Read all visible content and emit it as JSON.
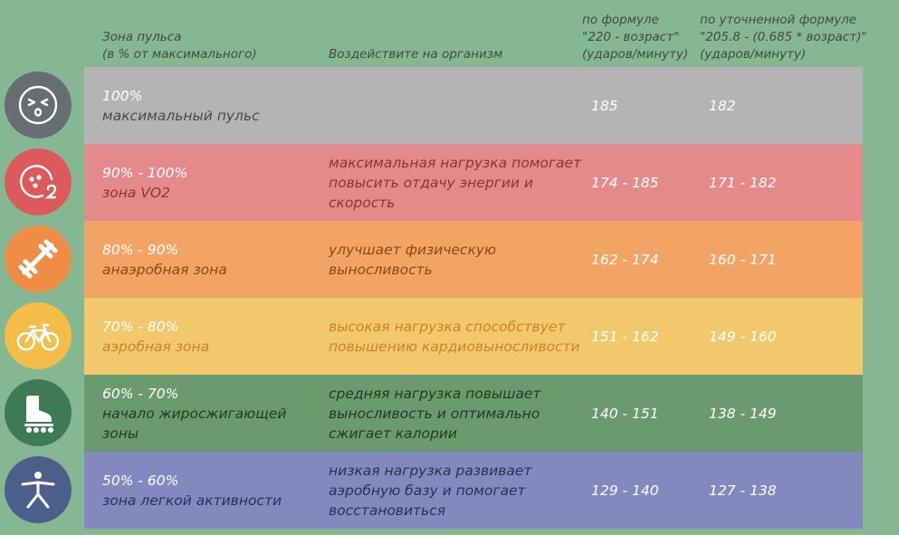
{
  "header": {
    "zone": "Зона пульса\n(в % от максимального)",
    "effect": "Воздействите на организм",
    "formula1": "по формуле\n\"220 - возраст\"\n(ударов/минуту)",
    "formula2": "по уточненной формуле\n\"205.8 - (0.685 * возраст)\"\n(ударов/минуту)"
  },
  "rows": [
    {
      "pct": "100%",
      "name": "максимальный пульс",
      "effect": "",
      "f1": "185",
      "f2": "182",
      "bg": "#b4b4b4",
      "text_color": "#4a4a4a",
      "icon": "face-icon",
      "icon_bg": "#676d73"
    },
    {
      "pct": "90% - 100%",
      "name": "зона VO2",
      "effect": "максимальная нагрузка помогает повысить отдачу энергии и скорость",
      "f1": "174 - 185",
      "f2": "171 - 182",
      "bg": "#e48a8a",
      "text_color": "#8a3535",
      "icon": "o2-icon",
      "icon_bg": "#dd5a5c"
    },
    {
      "pct": "80% - 90%",
      "name": "анаэробная зона",
      "effect": "улучшает физическую выносливость",
      "f1": "162 - 174",
      "f2": "160 - 171",
      "bg": "#f2a466",
      "text_color": "#8a4a16",
      "icon": "dumbbell-icon",
      "icon_bg": "#ef8c46"
    },
    {
      "pct": "70% - 80%",
      "name": "аэробная зона",
      "effect": "высокая нагрузка способствует повышению кардиовыносливости",
      "f1": "151 - 162",
      "f2": "149 - 160",
      "bg": "#f1c96c",
      "text_color": "#c9832a",
      "icon": "bicycle-icon",
      "icon_bg": "#f4bd47"
    },
    {
      "pct": "60% - 70%",
      "name": "начало жиросжигающей зоны",
      "effect": "средняя нагрузка повышает выносливость и оптимально сжигает калории",
      "f1": "140 - 151",
      "f2": "138 - 149",
      "bg": "#6a9a6e",
      "text_color": "#1f3b24",
      "icon": "skate-icon",
      "icon_bg": "#3e7a55"
    },
    {
      "pct": "50% - 60%",
      "name": "зона легкой активности",
      "effect": "низкая нагрузка развивает аэробную базу и помогает восстановиться",
      "f1": "129 - 140",
      "f2": "127 - 138",
      "bg": "#8389be",
      "text_color": "#2a2f5a",
      "icon": "stretch-icon",
      "icon_bg": "#4b5f8a"
    }
  ]
}
